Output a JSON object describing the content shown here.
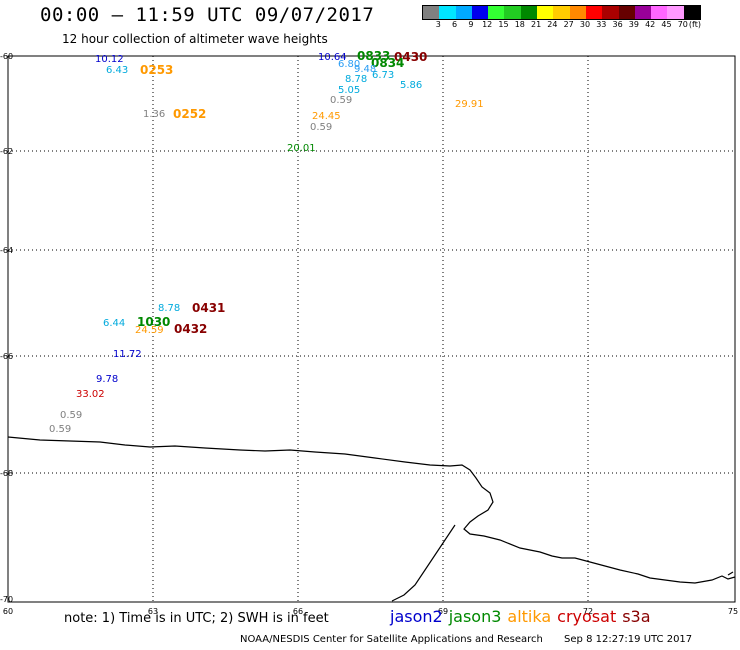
{
  "header": {
    "title": "00:00 – 11:59 UTC 09/07/2017",
    "subtitle": "12 hour collection of altimeter wave heights"
  },
  "color_scale": {
    "colors": [
      "#808080",
      "#00e5ff",
      "#00aaff",
      "#0000ee",
      "#33ff33",
      "#22cc22",
      "#008800",
      "#ffff00",
      "#ffcc00",
      "#ff8800",
      "#ff0000",
      "#aa0000",
      "#660000",
      "#990099",
      "#ff66ff",
      "#ff99ff",
      "#000000"
    ],
    "labels": [
      "3",
      "6",
      "9",
      "12",
      "15",
      "18",
      "21",
      "24",
      "27",
      "30",
      "33",
      "36",
      "39",
      "42",
      "45",
      "70",
      "(ft)"
    ]
  },
  "axes": {
    "lat_ticks": [
      "-60",
      "-62",
      "-64",
      "-66",
      "-68",
      "-70"
    ],
    "lon_ticks": [
      "60",
      "63",
      "66",
      "69",
      "72",
      "75"
    ]
  },
  "colors": {
    "jason2": "#0000cc",
    "jason3": "#008800",
    "altika": "#ff9900",
    "cryosat": "#cc0000",
    "s3a": "#880000",
    "gray": "#808080",
    "cyan": "#00aadd",
    "lightblue": "#2a9df4"
  },
  "observations": [
    {
      "text": "10.12",
      "color": "#0000cc"
    },
    {
      "text": "6.43",
      "color": "#00aadd"
    },
    {
      "text": "0253",
      "color": "#ff9900"
    },
    {
      "text": "1.36",
      "color": "#808080"
    },
    {
      "text": "0252",
      "color": "#ff9900"
    },
    {
      "text": "10.64",
      "color": "#0000cc"
    },
    {
      "text": "0833",
      "color": "#008800"
    },
    {
      "text": "0430",
      "color": "#880000"
    },
    {
      "text": "6.80",
      "color": "#2a9df4"
    },
    {
      "text": "0834",
      "color": "#008800"
    },
    {
      "text": "9.48",
      "color": "#2a9df4"
    },
    {
      "text": "8.78",
      "color": "#00aadd"
    },
    {
      "text": "6.73",
      "color": "#00aadd"
    },
    {
      "text": "5.05",
      "color": "#00aadd"
    },
    {
      "text": "5.86",
      "color": "#00aadd"
    },
    {
      "text": "0.59",
      "color": "#808080"
    },
    {
      "text": "24.45",
      "color": "#ff9900"
    },
    {
      "text": "29.91",
      "color": "#ff9900"
    },
    {
      "text": "0.59",
      "color": "#808080"
    },
    {
      "text": "20.01",
      "color": "#008800"
    },
    {
      "text": "8.78",
      "color": "#00aadd"
    },
    {
      "text": "0431",
      "color": "#880000"
    },
    {
      "text": "6.44",
      "color": "#00aadd"
    },
    {
      "text": "1030",
      "color": "#008800"
    },
    {
      "text": "24.59",
      "color": "#ff9900"
    },
    {
      "text": "0432",
      "color": "#880000"
    },
    {
      "text": "11.72",
      "color": "#0000cc"
    },
    {
      "text": "9.78",
      "color": "#0000cc"
    },
    {
      "text": "33.02",
      "color": "#cc0000"
    },
    {
      "text": "0.59",
      "color": "#808080"
    },
    {
      "text": "0.59",
      "color": "#808080"
    }
  ],
  "footer": {
    "note": "note: 1) Time is in UTC; 2) SWH is in feet",
    "satellites": [
      {
        "name": "jason2",
        "color": "#0000cc"
      },
      {
        "name": "jason3",
        "color": "#008800"
      },
      {
        "name": "altika",
        "color": "#ff9900"
      },
      {
        "name": "cryosat",
        "color": "#cc0000"
      },
      {
        "name": "s3a",
        "color": "#880000"
      }
    ],
    "credit": "NOAA/NESDIS Center for Satellite Applications and Research",
    "timestamp": "Sep  8 12:27:19 UTC 2017"
  }
}
